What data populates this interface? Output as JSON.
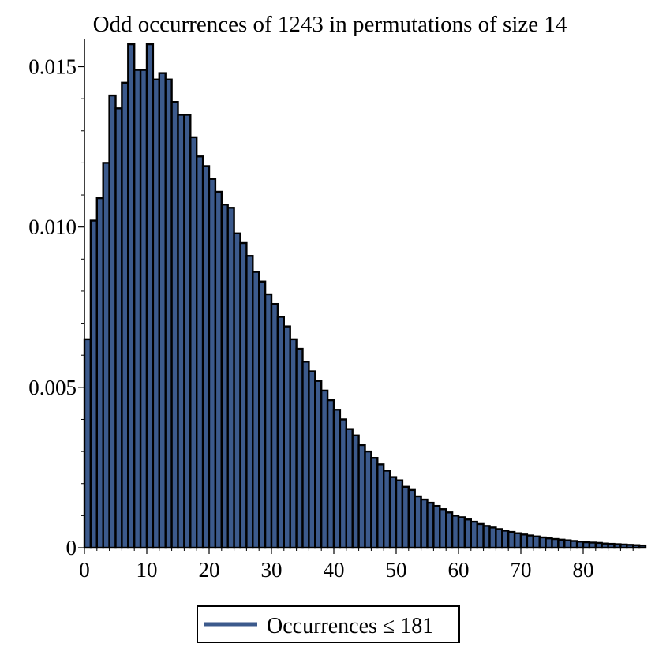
{
  "chart_data": {
    "type": "bar",
    "title": "Odd occurrences of 1243 in permutations of size 14",
    "xlabel": "",
    "ylabel": "",
    "xlim": [
      0,
      90
    ],
    "ylim": [
      0,
      0.0158
    ],
    "x_ticks": [
      0,
      10,
      20,
      30,
      40,
      50,
      60,
      70,
      80
    ],
    "x_tick_labels": [
      "0",
      "10",
      "20",
      "30",
      "40",
      "50",
      "60",
      "70",
      "80"
    ],
    "y_ticks": [
      0,
      0.005,
      0.01,
      0.015
    ],
    "y_tick_labels": [
      "0",
      "0.005",
      "0.010",
      "0.015"
    ],
    "bar_width": 1,
    "grid": false,
    "legend_position": "bottom-center",
    "colors": {
      "bar_fill": "#3c5a8c",
      "bar_edge": "#000000",
      "legend_line": "#3c5a8c"
    },
    "series": [
      {
        "name": "Occurrences ≤ 181",
        "x": [
          0,
          1,
          2,
          3,
          4,
          5,
          6,
          7,
          8,
          9,
          10,
          11,
          12,
          13,
          14,
          15,
          16,
          17,
          18,
          19,
          20,
          21,
          22,
          23,
          24,
          25,
          26,
          27,
          28,
          29,
          30,
          31,
          32,
          33,
          34,
          35,
          36,
          37,
          38,
          39,
          40,
          41,
          42,
          43,
          44,
          45,
          46,
          47,
          48,
          49,
          50,
          51,
          52,
          53,
          54,
          55,
          56,
          57,
          58,
          59,
          60,
          61,
          62,
          63,
          64,
          65,
          66,
          67,
          68,
          69,
          70,
          71,
          72,
          73,
          74,
          75,
          76,
          77,
          78,
          79,
          80,
          81,
          82,
          83,
          84,
          85,
          86,
          87,
          88,
          89
        ],
        "values": [
          0.0065,
          0.0102,
          0.0109,
          0.012,
          0.0141,
          0.0137,
          0.0145,
          0.0157,
          0.0149,
          0.0149,
          0.0157,
          0.0146,
          0.0148,
          0.0146,
          0.0139,
          0.0135,
          0.0135,
          0.0128,
          0.0122,
          0.0119,
          0.0115,
          0.0111,
          0.0107,
          0.0106,
          0.0098,
          0.0095,
          0.0091,
          0.0086,
          0.0083,
          0.0079,
          0.0076,
          0.0072,
          0.0069,
          0.0065,
          0.0062,
          0.0058,
          0.0055,
          0.0052,
          0.0049,
          0.0046,
          0.0043,
          0.004,
          0.0037,
          0.0035,
          0.0032,
          0.003,
          0.0028,
          0.0026,
          0.0024,
          0.0022,
          0.0021,
          0.0019,
          0.0018,
          0.0016,
          0.0015,
          0.0014,
          0.0013,
          0.0012,
          0.0011,
          0.001,
          0.00095,
          0.00088,
          0.00081,
          0.00074,
          0.00068,
          0.00063,
          0.00058,
          0.00053,
          0.00049,
          0.00045,
          0.00041,
          0.00038,
          0.00035,
          0.00032,
          0.00029,
          0.00027,
          0.00025,
          0.00023,
          0.00021,
          0.00019,
          0.00017,
          0.00016,
          0.00015,
          0.00013,
          0.00012,
          0.00011,
          0.0001,
          9e-05,
          8e-05,
          7e-05
        ]
      }
    ]
  }
}
